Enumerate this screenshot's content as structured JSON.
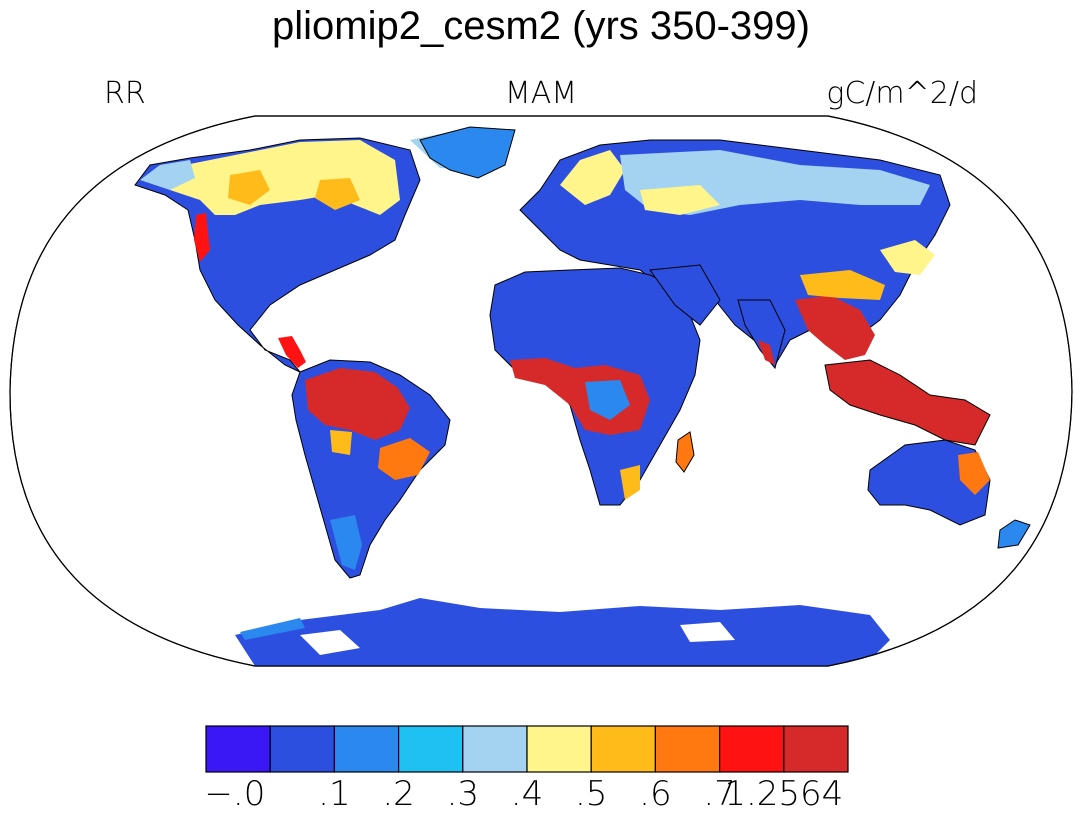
{
  "title": "pliomip2_cesm2 (yrs 350-399)",
  "subtitle_left": "RR",
  "subtitle_center": "MAM",
  "subtitle_right": "gC/m^2/d",
  "colorbar": {
    "colors": [
      "#3a18f5",
      "#2d4fe0",
      "#2a88ee",
      "#1fc0f2",
      "#a3d3f0",
      "#fff58a",
      "#ffbb1a",
      "#ff7810",
      "#ff1212",
      "#d62a2a"
    ],
    "labels": [
      "−.0",
      ".1",
      ".2",
      ".3",
      ".4",
      ".5",
      ".6",
      ".7",
      "1.2564"
    ]
  },
  "map": {
    "projection": "Robinson",
    "ocean_color": "#ffffff",
    "coastline_color": "#000000"
  }
}
